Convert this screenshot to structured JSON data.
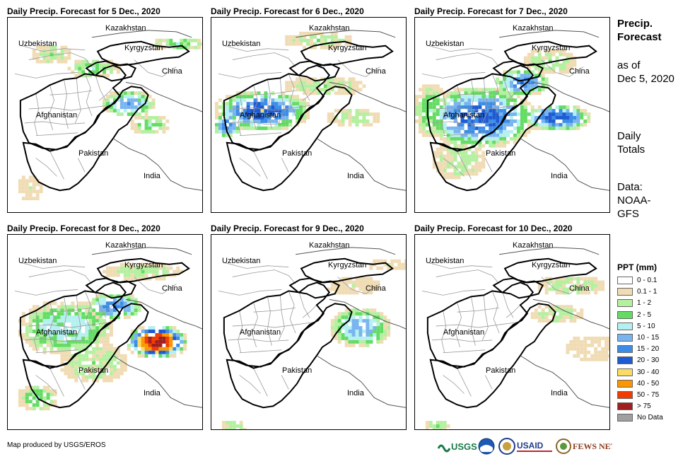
{
  "panels": [
    {
      "title": "Daily Precip. Forecast for 5 Dec., 2020",
      "day": 5
    },
    {
      "title": "Daily Precip. Forecast for 6 Dec., 2020",
      "day": 6
    },
    {
      "title": "Daily Precip. Forecast for 7 Dec., 2020",
      "day": 7
    },
    {
      "title": "Daily Precip. Forecast for 8 Dec., 2020",
      "day": 8
    },
    {
      "title": "Daily Precip. Forecast for 9 Dec., 2020",
      "day": 9
    },
    {
      "title": "Daily Precip. Forecast for 10 Dec., 2020",
      "day": 10
    }
  ],
  "countries": {
    "kazakhstan": "Kazakhstan",
    "uzbekistan": "Uzbekistan",
    "kyrgyzstan": "Kyrgyzstan",
    "china": "China",
    "afghanistan": "Afghanistan",
    "pakistan": "Pakistan",
    "india": "India"
  },
  "side": {
    "title_line1": "Precip.",
    "title_line2": "Forecast",
    "asof_line1": "as of",
    "asof_line2": "Dec 5, 2020",
    "daily_line1": "Daily",
    "daily_line2": "Totals",
    "data_line1": "Data:",
    "data_line2": "NOAA-",
    "data_line3": "GFS"
  },
  "legend": {
    "title": "PPT (mm)",
    "items": [
      {
        "label": "0 - 0.1",
        "color": "#ffffff"
      },
      {
        "label": "0.1 - 1",
        "color": "#f0dcb4"
      },
      {
        "label": "1 - 2",
        "color": "#b4f0a0"
      },
      {
        "label": "2 - 5",
        "color": "#64dc64"
      },
      {
        "label": "5 - 10",
        "color": "#b4f0f0"
      },
      {
        "label": "10 - 15",
        "color": "#78b4f0"
      },
      {
        "label": "15 - 20",
        "color": "#3c8ce6"
      },
      {
        "label": "20 - 30",
        "color": "#1e5ad2"
      },
      {
        "label": "30 - 40",
        "color": "#fadc64"
      },
      {
        "label": "40 - 50",
        "color": "#fa9600"
      },
      {
        "label": "50 - 75",
        "color": "#f03c00"
      },
      {
        "label": "> 75",
        "color": "#a01e1e"
      },
      {
        "label": "No Data",
        "color": "#a0a0a0"
      }
    ]
  },
  "credit": "Map produced by USGS/EROS",
  "logos": {
    "usgs": "USGS",
    "usaid": "USAID",
    "fewsnet": "FEWS NET"
  }
}
